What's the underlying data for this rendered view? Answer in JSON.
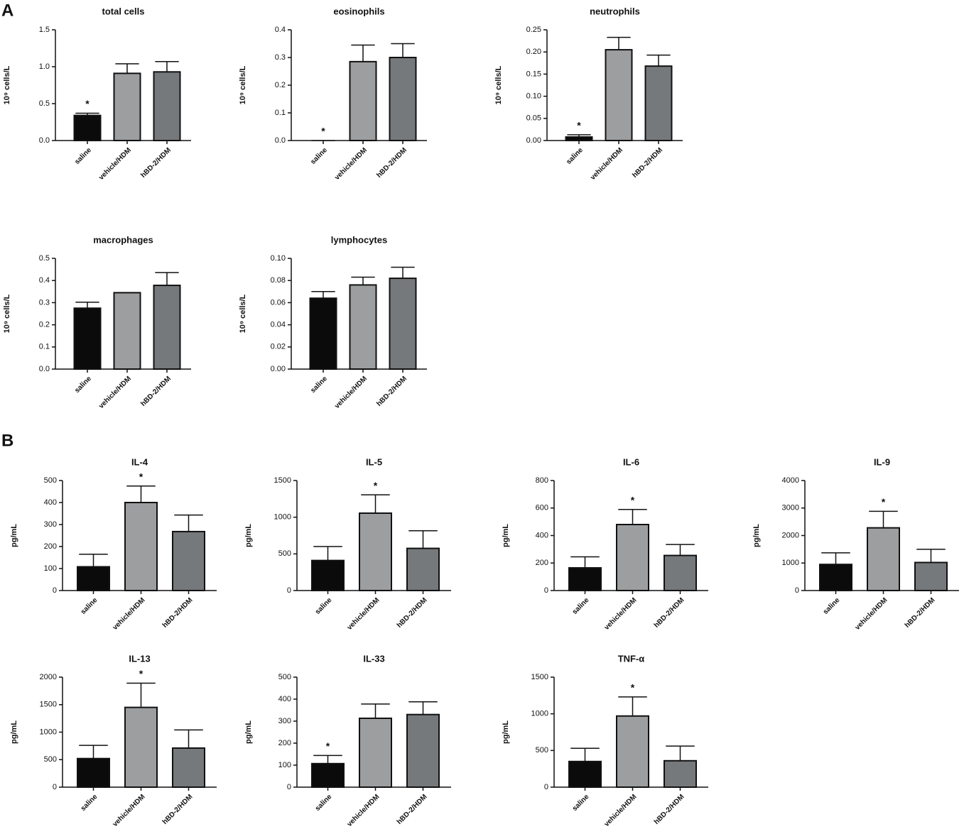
{
  "panel_labels": [
    "A",
    "B"
  ],
  "bar_colors": [
    "#0b0b0b",
    "#9c9ea0",
    "#76797b"
  ],
  "chart_data": [
    {
      "type": "bar",
      "title": "total cells",
      "y_label": "10⁹ cells/L",
      "categories": [
        "saline",
        "vehicle/HDM",
        "hBD-2/HDM"
      ],
      "values": [
        0.34,
        0.91,
        0.93
      ],
      "errors": [
        0.03,
        0.13,
        0.14
      ],
      "significance": [
        "*",
        null,
        null
      ],
      "ylim": [
        0,
        1.5
      ],
      "yticks": [
        {
          "value": 0,
          "label": "0.0"
        },
        0.5,
        {
          "value": 1,
          "label": "1.0"
        },
        1.5
      ]
    },
    {
      "type": "bar",
      "title": "eosinophils",
      "y_label": "10⁹ cells/L",
      "categories": [
        "saline",
        "vehicle/HDM",
        "hBD-2/HDM"
      ],
      "values": [
        0,
        0.285,
        0.3
      ],
      "errors": [
        0,
        0.06,
        0.05
      ],
      "significance": [
        "*",
        null,
        null
      ],
      "ylim": [
        0,
        0.4
      ],
      "yticks": [
        {
          "value": 0,
          "label": "0.0"
        },
        0.1,
        0.2,
        0.3,
        0.4
      ]
    },
    {
      "type": "bar",
      "title": "neutrophils",
      "y_label": "10⁹ cells/L",
      "categories": [
        "saline",
        "vehicle/HDM",
        "hBD-2/HDM"
      ],
      "values": [
        0.008,
        0.205,
        0.168
      ],
      "errors": [
        0.005,
        0.028,
        0.025
      ],
      "significance": [
        "*",
        null,
        null
      ],
      "ylim": [
        0,
        0.25
      ],
      "yticks": [
        {
          "value": 0,
          "label": "0.00"
        },
        0.05,
        {
          "value": 0.1,
          "label": "0.10"
        },
        0.15,
        {
          "value": 0.2,
          "label": "0.20"
        },
        0.25
      ]
    },
    {
      "type": "bar",
      "title": "macrophages",
      "y_label": "10⁹ cells/L",
      "categories": [
        "saline",
        "vehicle/HDM",
        "hBD-2/HDM"
      ],
      "values": [
        0.275,
        0.345,
        0.378
      ],
      "errors": [
        0.027,
        0,
        0.058
      ],
      "significance": [
        null,
        null,
        null
      ],
      "ylim": [
        0,
        0.5
      ],
      "yticks": [
        {
          "value": 0,
          "label": "0.0"
        },
        0.1,
        0.2,
        0.3,
        0.4,
        0.5
      ]
    },
    {
      "type": "bar",
      "title": "lymphocytes",
      "y_label": "10⁹ cells/L",
      "categories": [
        "saline",
        "vehicle/HDM",
        "hBD-2/HDM"
      ],
      "values": [
        0.064,
        0.076,
        0.082
      ],
      "errors": [
        0.006,
        0.007,
        0.01
      ],
      "significance": [
        null,
        null,
        null
      ],
      "ylim": [
        0,
        0.1
      ],
      "yticks": [
        {
          "value": 0,
          "label": "0.00"
        },
        {
          "value": 0.02,
          "label": "0.02"
        },
        {
          "value": 0.04,
          "label": "0.04"
        },
        {
          "value": 0.06,
          "label": "0.06"
        },
        {
          "value": 0.08,
          "label": "0.08"
        },
        {
          "value": 0.1,
          "label": "0.10"
        }
      ]
    },
    {
      "type": "bar",
      "title": "IL-4",
      "y_label": "pg/mL",
      "categories": [
        "saline",
        "vehicle/HDM",
        "hBD-2/HDM"
      ],
      "values": [
        108,
        400,
        268
      ],
      "errors": [
        57,
        75,
        75
      ],
      "significance": [
        null,
        "*",
        null
      ],
      "ylim": [
        0,
        500
      ],
      "yticks": [
        0,
        100,
        200,
        300,
        400,
        500
      ]
    },
    {
      "type": "bar",
      "title": "IL-5",
      "y_label": "pg/mL",
      "categories": [
        "saline",
        "vehicle/HDM",
        "hBD-2/HDM"
      ],
      "values": [
        410,
        1055,
        575
      ],
      "errors": [
        190,
        250,
        240
      ],
      "significance": [
        null,
        "*",
        null
      ],
      "ylim": [
        0,
        1500
      ],
      "yticks": [
        0,
        500,
        1000,
        1500
      ]
    },
    {
      "type": "bar",
      "title": "IL-6",
      "y_label": "pg/mL",
      "categories": [
        "saline",
        "vehicle/HDM",
        "hBD-2/HDM"
      ],
      "values": [
        165,
        480,
        255
      ],
      "errors": [
        80,
        110,
        80
      ],
      "significance": [
        null,
        "*",
        null
      ],
      "ylim": [
        0,
        800
      ],
      "yticks": [
        0,
        200,
        400,
        600,
        800
      ]
    },
    {
      "type": "bar",
      "title": "IL-9",
      "y_label": "pg/mL",
      "categories": [
        "saline",
        "vehicle/HDM",
        "hBD-2/HDM"
      ],
      "values": [
        950,
        2280,
        1020
      ],
      "errors": [
        420,
        600,
        480
      ],
      "significance": [
        null,
        "*",
        null
      ],
      "ylim": [
        0,
        4000
      ],
      "yticks": [
        0,
        1000,
        2000,
        3000,
        4000
      ]
    },
    {
      "type": "bar",
      "title": "IL-13",
      "y_label": "pg/mL",
      "categories": [
        "saline",
        "vehicle/HDM",
        "hBD-2/HDM"
      ],
      "values": [
        520,
        1450,
        710
      ],
      "errors": [
        240,
        440,
        330
      ],
      "significance": [
        null,
        "*",
        null
      ],
      "ylim": [
        0,
        2000
      ],
      "yticks": [
        0,
        500,
        1000,
        1500,
        2000
      ]
    },
    {
      "type": "bar",
      "title": "IL-33",
      "y_label": "pg/mL",
      "categories": [
        "saline",
        "vehicle/HDM",
        "hBD-2/HDM"
      ],
      "values": [
        107,
        313,
        330
      ],
      "errors": [
        37,
        65,
        58
      ],
      "significance": [
        "*",
        null,
        null
      ],
      "ylim": [
        0,
        500
      ],
      "yticks": [
        0,
        100,
        200,
        300,
        400,
        500
      ]
    },
    {
      "type": "bar",
      "title": "TNF-α",
      "y_label": "pg/mL",
      "categories": [
        "saline",
        "vehicle/HDM",
        "hBD-2/HDM"
      ],
      "values": [
        350,
        970,
        360
      ],
      "errors": [
        180,
        260,
        200
      ],
      "significance": [
        null,
        "*",
        null
      ],
      "ylim": [
        0,
        1500
      ],
      "yticks": [
        0,
        500,
        1000,
        1500
      ]
    }
  ]
}
